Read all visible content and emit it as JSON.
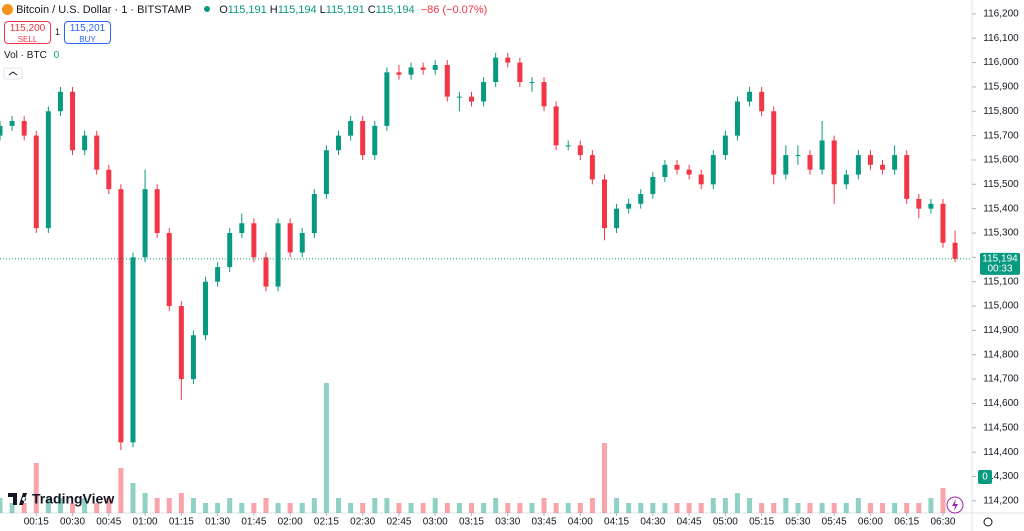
{
  "header": {
    "symbol": "Bitcoin / U.S. Dollar · 1 · BITSTAMP",
    "ohlc": [
      {
        "key": "O",
        "value": "115,191"
      },
      {
        "key": "H",
        "value": "115,194"
      },
      {
        "key": "L",
        "value": "115,191"
      },
      {
        "key": "C",
        "value": "115,194"
      }
    ],
    "change": "−86 (−0.07%)",
    "sell_price": "115,200",
    "sell_label": "SELL",
    "spread": "1",
    "buy_price": "115,201",
    "buy_label": "BUY",
    "volume_title": "Vol · BTC",
    "volume_value": "0",
    "logo": "TradingView"
  },
  "chart_data": {
    "type": "candlestick",
    "up_color": "#089981",
    "down_color": "#f23645",
    "grid": false,
    "x": [
      "00:00",
      "00:05",
      "00:10",
      "00:15",
      "00:20",
      "00:25",
      "00:30",
      "00:35",
      "00:40",
      "00:45",
      "00:50",
      "00:55",
      "01:00",
      "01:05",
      "01:10",
      "01:15",
      "01:20",
      "01:25",
      "01:30",
      "01:35",
      "01:40",
      "01:45",
      "01:50",
      "01:55",
      "02:00",
      "02:05",
      "02:10",
      "02:15",
      "02:20",
      "02:25",
      "02:30",
      "02:35",
      "02:40",
      "02:45",
      "02:50",
      "02:55",
      "03:00",
      "03:05",
      "03:10",
      "03:15",
      "03:20",
      "03:25",
      "03:30",
      "03:35",
      "03:40",
      "03:45",
      "03:50",
      "03:55",
      "04:00",
      "04:05",
      "04:10",
      "04:15",
      "04:20",
      "04:25",
      "04:30",
      "04:35",
      "04:40",
      "04:45",
      "04:50",
      "04:55",
      "05:00",
      "05:05",
      "05:10",
      "05:15",
      "05:20",
      "05:25",
      "05:30",
      "05:35",
      "05:40",
      "05:45",
      "05:50",
      "05:55",
      "06:00",
      "06:05",
      "06:10",
      "06:15",
      "06:20",
      "06:25",
      "06:30",
      "06:35"
    ],
    "open": [
      115700,
      115740,
      115760,
      115700,
      115320,
      115800,
      115880,
      115640,
      115700,
      115560,
      115480,
      114440,
      115200,
      115480,
      115300,
      115000,
      114700,
      114880,
      115100,
      115160,
      115300,
      115340,
      115200,
      115080,
      115340,
      115220,
      115300,
      115460,
      115640,
      115700,
      115760,
      115620,
      115740,
      115960,
      115950,
      115980,
      115970,
      115990,
      115860,
      115860,
      115840,
      115920,
      116020,
      116000,
      115920,
      115920,
      115820,
      115660,
      115660,
      115620,
      115520,
      115320,
      115400,
      115420,
      115460,
      115530,
      115580,
      115560,
      115540,
      115500,
      115620,
      115700,
      115840,
      115880,
      115800,
      115540,
      115620,
      115620,
      115560,
      115680,
      115500,
      115540,
      115620,
      115580,
      115560,
      115620,
      115440,
      115400,
      115420,
      115260
    ],
    "high": [
      115760,
      115780,
      115780,
      115720,
      115820,
      115900,
      115900,
      115720,
      115720,
      115580,
      115500,
      115220,
      115560,
      115500,
      115320,
      115020,
      114900,
      115120,
      115180,
      115320,
      115380,
      115360,
      115220,
      115360,
      115360,
      115320,
      115480,
      115660,
      115720,
      115780,
      115780,
      115760,
      115980,
      115990,
      116000,
      116000,
      116010,
      116010,
      115880,
      115880,
      115940,
      116040,
      116040,
      116020,
      115940,
      115940,
      115840,
      115680,
      115680,
      115640,
      115540,
      115420,
      115440,
      115480,
      115550,
      115600,
      115600,
      115580,
      115560,
      115640,
      115720,
      115860,
      115900,
      115900,
      115820,
      115660,
      115660,
      115640,
      115760,
      115700,
      115560,
      115640,
      115640,
      115600,
      115660,
      115640,
      115460,
      115440,
      115440,
      115310
    ],
    "low": [
      115680,
      115720,
      115680,
      115300,
      115300,
      115780,
      115620,
      115620,
      115540,
      115460,
      114409,
      114420,
      115180,
      115280,
      114980,
      114615,
      114680,
      114860,
      115080,
      115140,
      115280,
      115180,
      115060,
      115060,
      115200,
      115200,
      115280,
      115440,
      115620,
      115680,
      115600,
      115600,
      115720,
      115930,
      115930,
      115950,
      115950,
      115840,
      115800,
      115820,
      115820,
      115900,
      115980,
      115900,
      115880,
      115800,
      115640,
      115640,
      115600,
      115500,
      115270,
      115300,
      115380,
      115400,
      115440,
      115510,
      115540,
      115520,
      115480,
      115480,
      115600,
      115680,
      115820,
      115780,
      115500,
      115520,
      115580,
      115540,
      115540,
      115420,
      115480,
      115520,
      115560,
      115540,
      115540,
      115420,
      115360,
      115380,
      115240,
      115180
    ],
    "close": [
      115740,
      115760,
      115700,
      115320,
      115800,
      115880,
      115640,
      115700,
      115560,
      115480,
      114440,
      115200,
      115480,
      115300,
      115000,
      114700,
      114880,
      115100,
      115160,
      115300,
      115340,
      115200,
      115080,
      115340,
      115220,
      115300,
      115460,
      115640,
      115700,
      115760,
      115620,
      115740,
      115960,
      115950,
      115980,
      115970,
      115990,
      115860,
      115860,
      115840,
      115920,
      116020,
      116000,
      115920,
      115920,
      115820,
      115660,
      115660,
      115620,
      115520,
      115320,
      115400,
      115420,
      115460,
      115530,
      115580,
      115560,
      115540,
      115500,
      115620,
      115700,
      115840,
      115880,
      115800,
      115540,
      115620,
      115620,
      115560,
      115680,
      115500,
      115540,
      115620,
      115580,
      115560,
      115620,
      115440,
      115400,
      115420,
      115260,
      115194
    ],
    "volume": [
      3,
      2,
      2,
      10,
      3,
      3,
      2,
      3,
      2,
      3,
      9,
      6,
      4,
      3,
      3,
      4,
      3,
      2,
      2,
      3,
      2,
      2,
      3,
      2,
      2,
      2,
      3,
      26,
      3,
      2,
      2,
      3,
      3,
      2,
      2,
      2,
      3,
      2,
      2,
      2,
      2,
      3,
      2,
      2,
      2,
      3,
      2,
      2,
      2,
      3,
      14,
      3,
      2,
      2,
      2,
      2,
      2,
      2,
      2,
      3,
      3,
      4,
      3,
      2,
      2,
      3,
      2,
      2,
      2,
      2,
      2,
      3,
      2,
      2,
      2,
      2,
      2,
      3,
      5,
      3
    ],
    "xlim": [
      "00:00",
      "06:42"
    ],
    "xticks": [
      "00:15",
      "00:30",
      "00:45",
      "01:00",
      "01:15",
      "01:30",
      "01:45",
      "02:00",
      "02:15",
      "02:30",
      "02:45",
      "03:00",
      "03:15",
      "03:30",
      "03:45",
      "04:00",
      "04:15",
      "04:30",
      "04:45",
      "05:00",
      "05:15",
      "05:30",
      "05:45",
      "06:00",
      "06:15",
      "06:30"
    ],
    "ylim": [
      114150,
      116257
    ],
    "yticks": [
      {
        "value": 114200,
        "label": "114,200"
      },
      {
        "value": 114300,
        "label": "114,300"
      },
      {
        "value": 114400,
        "label": "114,400"
      },
      {
        "value": 114500,
        "label": "114,500"
      },
      {
        "value": 114600,
        "label": "114,600"
      },
      {
        "value": 114700,
        "label": "114,700"
      },
      {
        "value": 114800,
        "label": "114,800"
      },
      {
        "value": 114900,
        "label": "114,900"
      },
      {
        "value": 115000,
        "label": "115,000"
      },
      {
        "value": 115100,
        "label": "115,100"
      },
      {
        "value": 115200,
        "label": "115,200"
      },
      {
        "value": 115300,
        "label": "115,300"
      },
      {
        "value": 115400,
        "label": "115,400"
      },
      {
        "value": 115500,
        "label": "115,500"
      },
      {
        "value": 115600,
        "label": "115,600"
      },
      {
        "value": 115700,
        "label": "115,700"
      },
      {
        "value": 115800,
        "label": "115,800"
      },
      {
        "value": 115900,
        "label": "115,900"
      },
      {
        "value": 116000,
        "label": "116,000"
      },
      {
        "value": 116100,
        "label": "116,100"
      },
      {
        "value": 116200,
        "label": "116,200"
      }
    ],
    "last_price": {
      "value": 115194,
      "label": "115,194"
    },
    "countdown": "00:33"
  }
}
